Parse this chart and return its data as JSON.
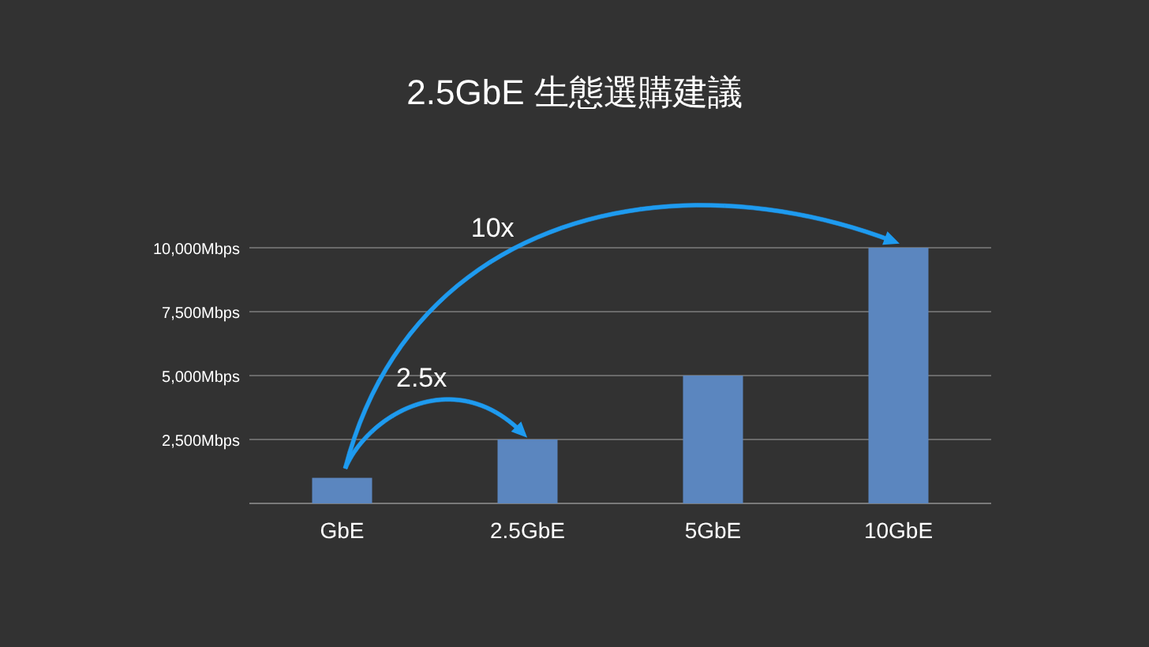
{
  "chart_data": {
    "type": "bar",
    "title": "2.5GbE 生態選購建議",
    "categories": [
      "GbE",
      "2.5GbE",
      "5GbE",
      "10GbE"
    ],
    "values": [
      1000,
      2500,
      5000,
      10000
    ],
    "color": "#5b86bf",
    "ylim": [
      0,
      10000
    ],
    "yticks": [
      {
        "value": 2500,
        "label": "2,500Mbps"
      },
      {
        "value": 5000,
        "label": "5,000Mbps"
      },
      {
        "value": 7500,
        "label": "7,500Mbps"
      },
      {
        "value": 10000,
        "label": "10,000Mbps"
      }
    ],
    "grid": "y",
    "annotations": [
      "2.5x",
      "10x"
    ]
  }
}
